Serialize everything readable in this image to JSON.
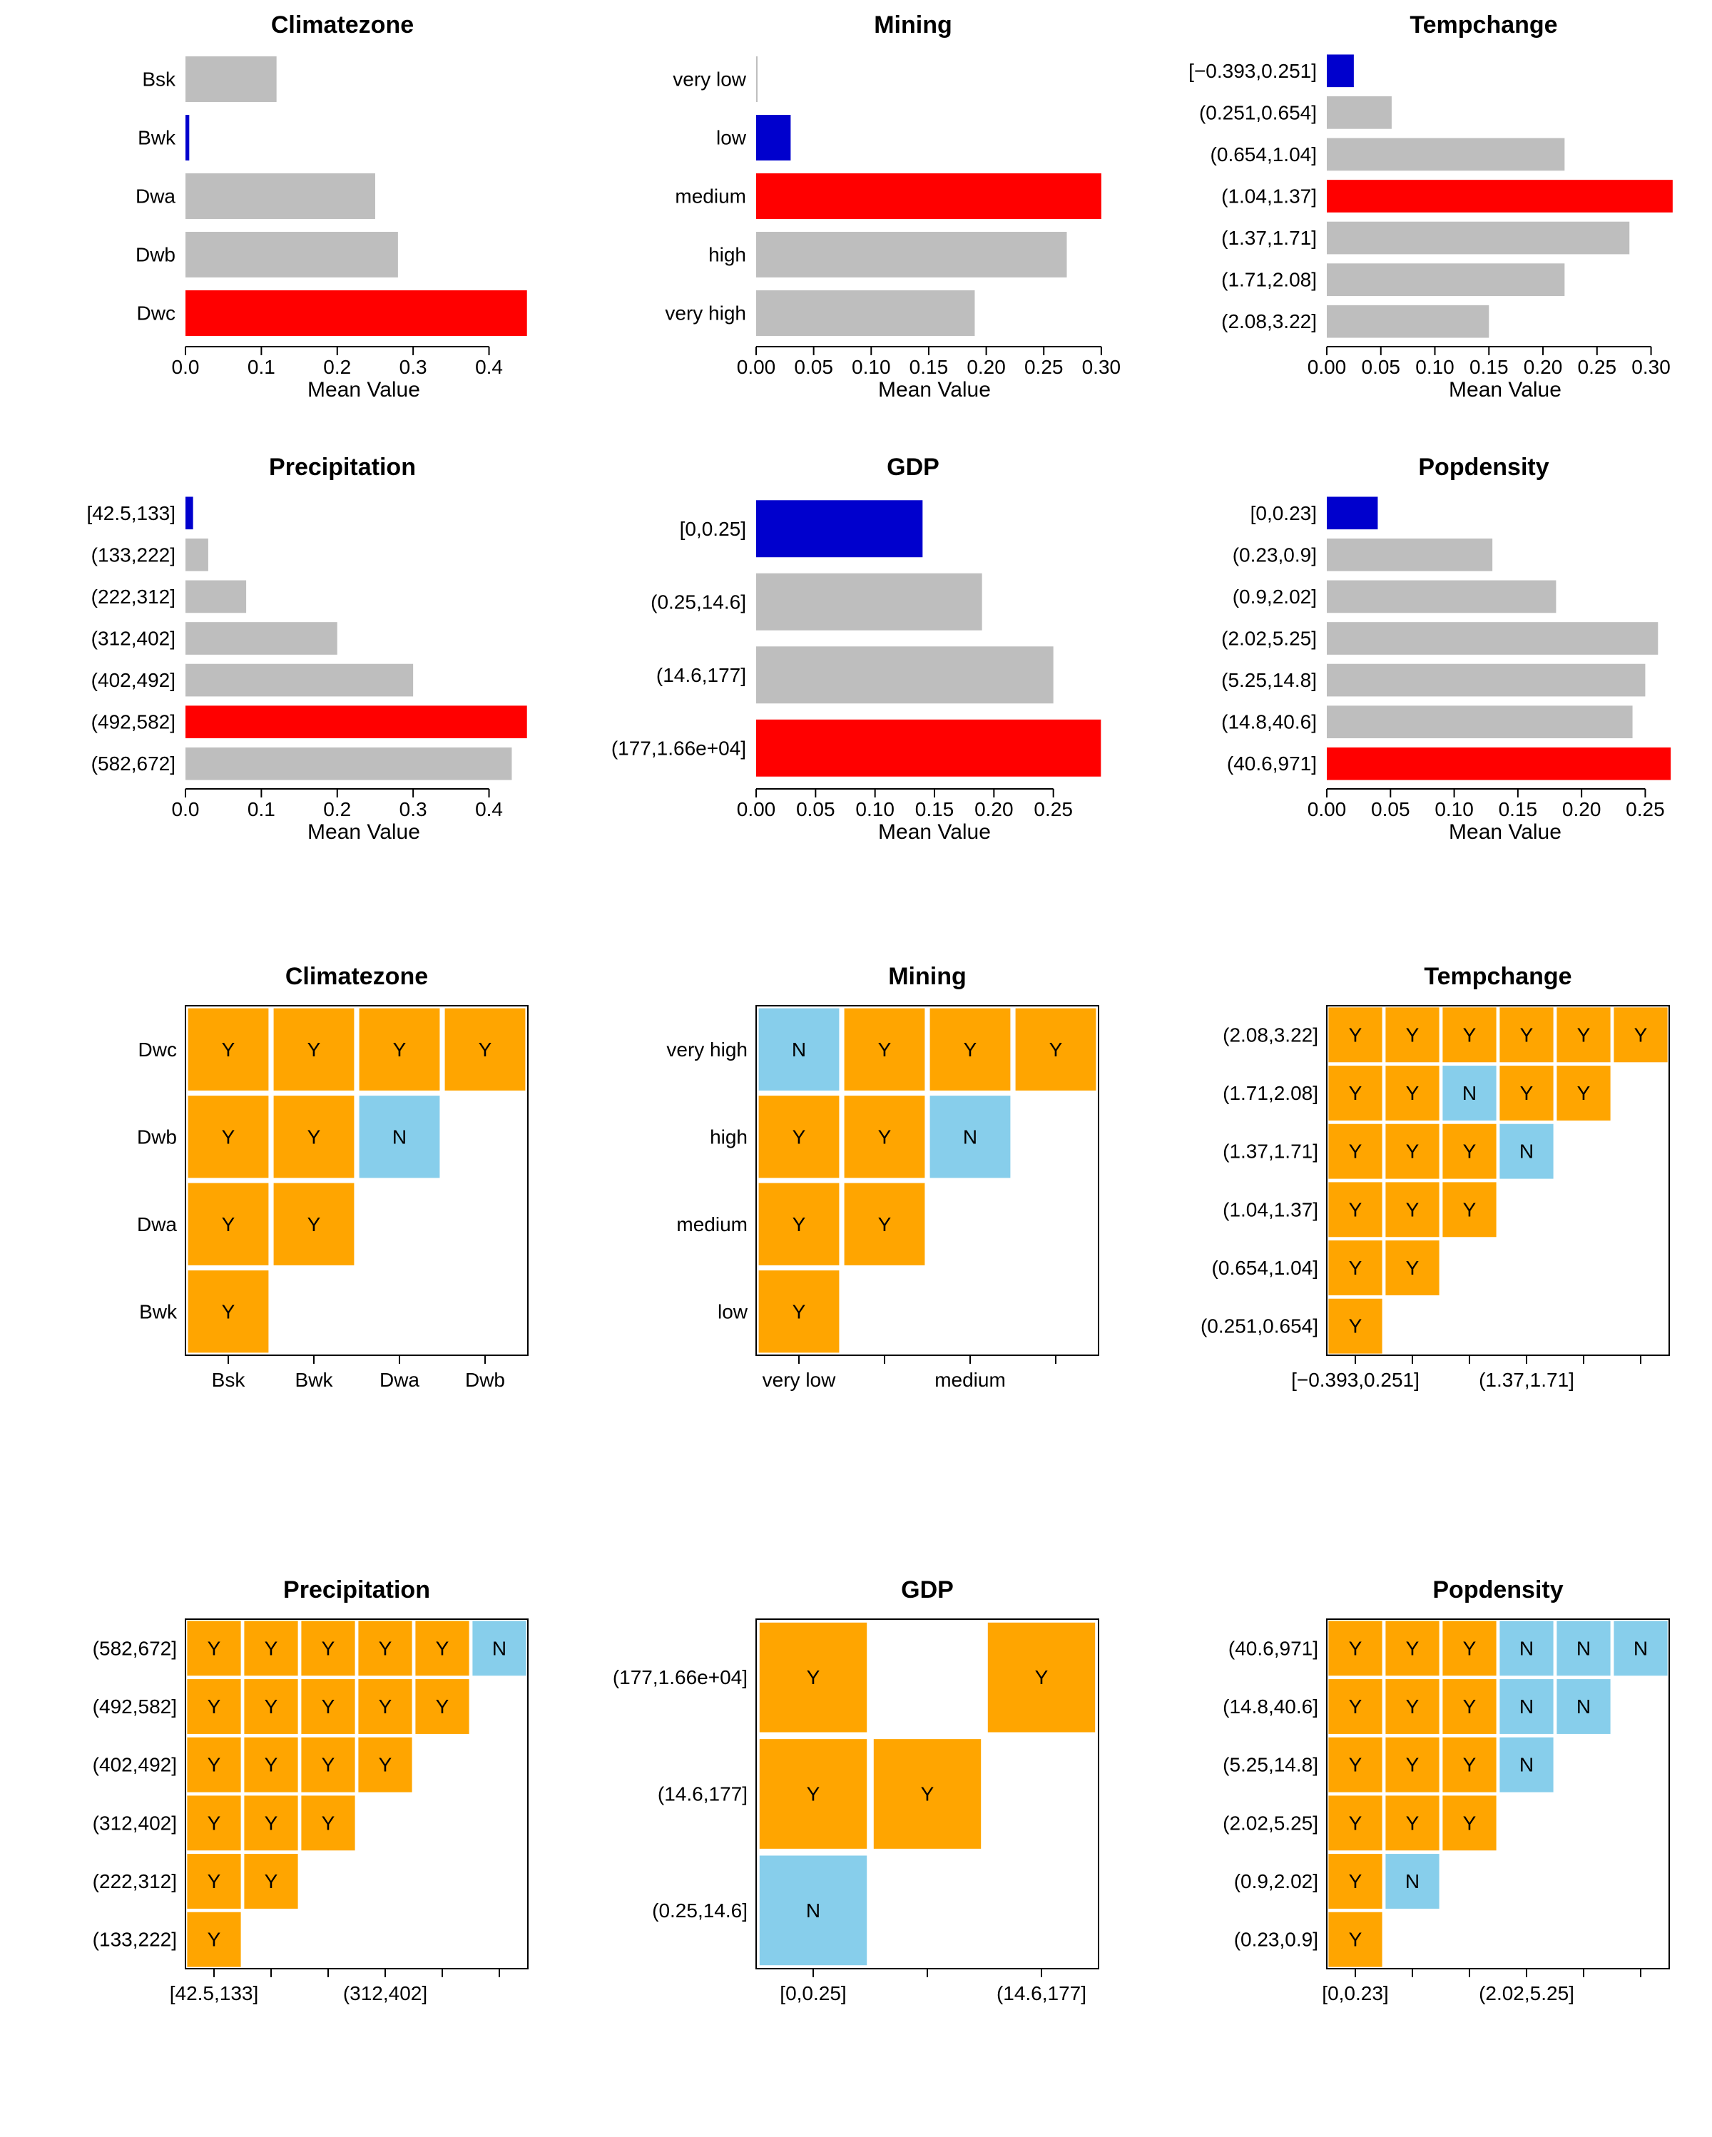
{
  "colors": {
    "bar_gray": "#bebebe",
    "bar_red": "#ff0000",
    "bar_blue": "#0000cd",
    "matrix_orange": "#ffa500",
    "matrix_lightblue": "#87ceeb",
    "axis": "#000000",
    "background": "#ffffff",
    "text": "#000000"
  },
  "typography": {
    "title_fontsize": 34,
    "tick_fontsize": 28,
    "axis_title_fontsize": 30,
    "matrix_fontsize": 28
  },
  "bar_charts": [
    {
      "title": "Climatezone",
      "xlabel": "Mean Value",
      "categories": [
        "Bsk",
        "Bwk",
        "Dwa",
        "Dwb",
        "Dwc"
      ],
      "values": [
        0.12,
        0.005,
        0.25,
        0.28,
        0.45
      ],
      "colors": [
        "bar_gray",
        "bar_blue",
        "bar_gray",
        "bar_gray",
        "bar_red"
      ],
      "xticks": [
        0.0,
        0.1,
        0.2,
        0.3,
        0.4
      ],
      "xlim": [
        0,
        0.47
      ]
    },
    {
      "title": "Mining",
      "xlabel": "Mean Value",
      "categories": [
        "very low",
        "low",
        "medium",
        "high",
        "very high"
      ],
      "values": [
        0.0,
        0.03,
        0.3,
        0.27,
        0.19
      ],
      "colors": [
        "bar_gray",
        "bar_blue",
        "bar_red",
        "bar_gray",
        "bar_gray"
      ],
      "xticks": [
        0.0,
        0.05,
        0.1,
        0.15,
        0.2,
        0.25,
        0.3
      ],
      "xlim": [
        0,
        0.31
      ]
    },
    {
      "title": "Tempchange",
      "xlabel": "Mean Value",
      "categories": [
        "[−0.393,0.251]",
        "(0.251,0.654]",
        "(0.654,1.04]",
        "(1.04,1.37]",
        "(1.37,1.71]",
        "(1.71,2.08]",
        "(2.08,3.22]"
      ],
      "values": [
        0.025,
        0.06,
        0.22,
        0.32,
        0.28,
        0.22,
        0.15
      ],
      "colors": [
        "bar_blue",
        "bar_gray",
        "bar_gray",
        "bar_red",
        "bar_gray",
        "bar_gray",
        "bar_gray"
      ],
      "xticks": [
        0.0,
        0.05,
        0.1,
        0.15,
        0.2,
        0.25,
        0.3
      ],
      "xlim": [
        0,
        0.33
      ]
    },
    {
      "title": "Precipitation",
      "xlabel": "Mean Value",
      "categories": [
        "[42.5,133]",
        "(133,222]",
        "(222,312]",
        "(312,402]",
        "(402,492]",
        "(492,582]",
        "(582,672]"
      ],
      "values": [
        0.01,
        0.03,
        0.08,
        0.2,
        0.3,
        0.45,
        0.43
      ],
      "colors": [
        "bar_blue",
        "bar_gray",
        "bar_gray",
        "bar_gray",
        "bar_gray",
        "bar_red",
        "bar_gray"
      ],
      "xticks": [
        0.0,
        0.1,
        0.2,
        0.3,
        0.4
      ],
      "xlim": [
        0,
        0.47
      ]
    },
    {
      "title": "GDP",
      "xlabel": "Mean Value",
      "categories": [
        "[0,0.25]",
        "(0.25,14.6]",
        "(14.6,177]",
        "(177,1.66e+04]"
      ],
      "values": [
        0.14,
        0.19,
        0.25,
        0.29
      ],
      "colors": [
        "bar_blue",
        "bar_gray",
        "bar_gray",
        "bar_red"
      ],
      "xticks": [
        0.0,
        0.05,
        0.1,
        0.15,
        0.2,
        0.25
      ],
      "xlim": [
        0,
        0.3
      ]
    },
    {
      "title": "Popdensity",
      "xlabel": "Mean Value",
      "categories": [
        "[0,0.23]",
        "(0.23,0.9]",
        "(0.9,2.02]",
        "(2.02,5.25]",
        "(5.25,14.8]",
        "(14.8,40.6]",
        "(40.6,971]"
      ],
      "values": [
        0.04,
        0.13,
        0.18,
        0.26,
        0.25,
        0.24,
        0.27
      ],
      "colors": [
        "bar_blue",
        "bar_gray",
        "bar_gray",
        "bar_gray",
        "bar_gray",
        "bar_gray",
        "bar_red"
      ],
      "xticks": [
        0.0,
        0.05,
        0.1,
        0.15,
        0.2,
        0.25
      ],
      "xlim": [
        0,
        0.28
      ]
    }
  ],
  "matrix_charts": [
    {
      "title": "Climatezone",
      "y_categories": [
        "Bwk",
        "Dwa",
        "Dwb",
        "Dwc"
      ],
      "x_categories": [
        "Bsk",
        "Bwk",
        "Dwa",
        "Dwb"
      ],
      "x_ticklabels": [
        "Bsk",
        "Bwk",
        "Dwa",
        "Dwb"
      ],
      "cells": [
        [
          "Y",
          null,
          null,
          null
        ],
        [
          "Y",
          "Y",
          null,
          null
        ],
        [
          "Y",
          "Y",
          "N",
          null
        ],
        [
          "Y",
          "Y",
          "Y",
          "Y"
        ]
      ]
    },
    {
      "title": "Mining",
      "y_categories": [
        "low",
        "medium",
        "high",
        "very high"
      ],
      "x_categories": [
        "very low",
        "low",
        "medium",
        "high"
      ],
      "x_ticklabels": [
        "very low",
        "",
        "medium",
        ""
      ],
      "cells": [
        [
          "Y",
          null,
          null,
          null
        ],
        [
          "Y",
          "Y",
          null,
          null
        ],
        [
          "Y",
          "Y",
          "N",
          null
        ],
        [
          "N",
          "Y",
          "Y",
          "Y"
        ]
      ]
    },
    {
      "title": "Tempchange",
      "y_categories": [
        "(0.251,0.654]",
        "(0.654,1.04]",
        "(1.04,1.37]",
        "(1.37,1.71]",
        "(1.71,2.08]",
        "(2.08,3.22]"
      ],
      "x_categories": [
        "[−0.393,0.251]",
        "(0.251,0.654]",
        "(0.654,1.04]",
        "(1.04,1.37]",
        "(1.37,1.71]",
        "(1.71,2.08]"
      ],
      "x_ticklabels": [
        "[−0.393,0.251]",
        "",
        "",
        "(1.37,1.71]",
        "",
        ""
      ],
      "cells": [
        [
          "Y",
          null,
          null,
          null,
          null,
          null
        ],
        [
          "Y",
          "Y",
          null,
          null,
          null,
          null
        ],
        [
          "Y",
          "Y",
          "Y",
          null,
          null,
          null
        ],
        [
          "Y",
          "Y",
          "Y",
          "N",
          null,
          null
        ],
        [
          "Y",
          "Y",
          "N",
          "Y",
          "Y",
          null
        ],
        [
          "Y",
          "Y",
          "Y",
          "Y",
          "Y",
          "Y"
        ]
      ]
    },
    {
      "title": "Precipitation",
      "y_categories": [
        "(133,222]",
        "(222,312]",
        "(312,402]",
        "(402,492]",
        "(492,582]",
        "(582,672]"
      ],
      "x_categories": [
        "[42.5,133]",
        "(133,222]",
        "(222,312]",
        "(312,402]",
        "(402,492]",
        "(492,582]"
      ],
      "x_ticklabels": [
        "[42.5,133]",
        "",
        "",
        "(312,402]",
        "",
        ""
      ],
      "cells": [
        [
          "Y",
          null,
          null,
          null,
          null,
          null
        ],
        [
          "Y",
          "Y",
          null,
          null,
          null,
          null
        ],
        [
          "Y",
          "Y",
          "Y",
          null,
          null,
          null
        ],
        [
          "Y",
          "Y",
          "Y",
          "Y",
          null,
          null
        ],
        [
          "Y",
          "Y",
          "Y",
          "Y",
          "Y",
          null
        ],
        [
          "Y",
          "Y",
          "Y",
          "Y",
          "Y",
          "N"
        ]
      ]
    },
    {
      "title": "GDP",
      "y_categories": [
        "(0.25,14.6]",
        "(14.6,177]",
        "(177,1.66e+04]"
      ],
      "x_categories": [
        "[0,0.25]",
        "(0.25,14.6]",
        "(14.6,177]"
      ],
      "x_ticklabels": [
        "[0,0.25]",
        "",
        "(14.6,177]"
      ],
      "cells": [
        [
          "N",
          null,
          null
        ],
        [
          "Y",
          "Y",
          null
        ],
        [
          "Y",
          null,
          "Y"
        ]
      ]
    },
    {
      "title": "Popdensity",
      "y_categories": [
        "(0.23,0.9]",
        "(0.9,2.02]",
        "(2.02,5.25]",
        "(5.25,14.8]",
        "(14.8,40.6]",
        "(40.6,971]"
      ],
      "x_categories": [
        "[0,0.23]",
        "(0.23,0.9]",
        "(0.9,2.02]",
        "(2.02,5.25]",
        "(5.25,14.8]",
        "(14.8,40.6]"
      ],
      "x_ticklabels": [
        "[0,0.23]",
        "",
        "",
        "(2.02,5.25]",
        "",
        ""
      ],
      "cells": [
        [
          "Y",
          null,
          null,
          null,
          null,
          null
        ],
        [
          "Y",
          "N",
          null,
          null,
          null,
          null
        ],
        [
          "Y",
          "Y",
          "Y",
          null,
          null,
          null
        ],
        [
          "Y",
          "Y",
          "Y",
          "N",
          null,
          null
        ],
        [
          "Y",
          "Y",
          "Y",
          "N",
          "N",
          null
        ],
        [
          "Y",
          "Y",
          "Y",
          "N",
          "N",
          "N"
        ]
      ]
    }
  ]
}
